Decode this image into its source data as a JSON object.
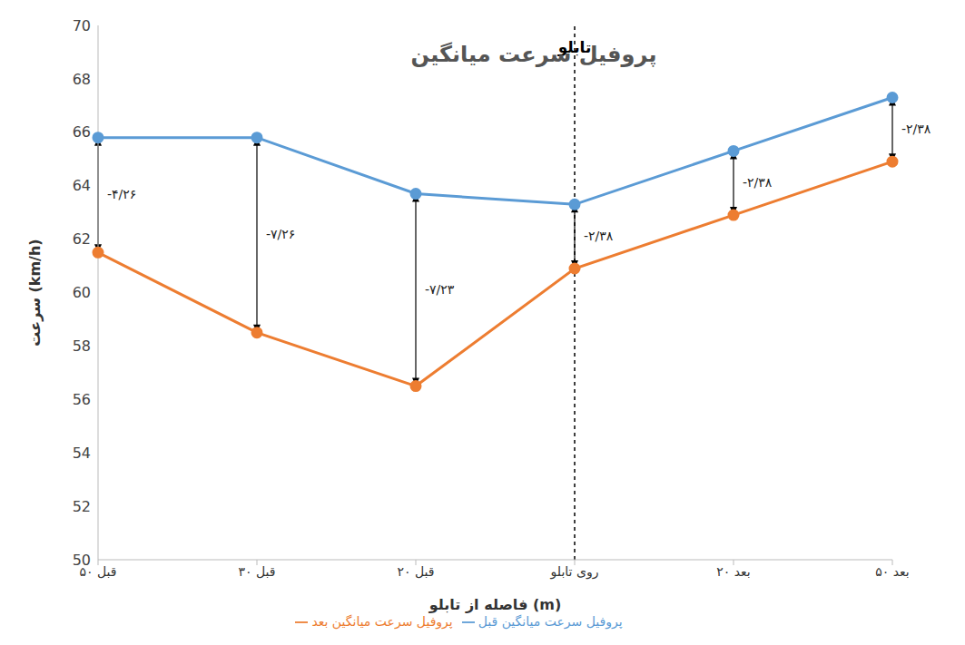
{
  "chart_data": {
    "type": "line",
    "title": "پروفیل سرعت میانگین",
    "x_label": "فاصله از تابلو (m)",
    "y_label": "سرعت (km/h)",
    "categories": [
      "۵۰ قبل",
      "۳۰ قبل",
      "۲۰ قبل",
      "روی تابلو",
      "۲۰ بعد",
      "۵۰ بعد"
    ],
    "series": [
      {
        "name": "پروفیل سرعت میانگین قبل",
        "color": "#5b9bd5",
        "marker": "circle",
        "values": [
          65.8,
          65.8,
          63.7,
          63.3,
          65.3,
          67.3
        ]
      },
      {
        "name": "پروفیل سرعت میانگین بعد",
        "color": "#ed7d31",
        "marker": "circle",
        "values": [
          61.5,
          58.5,
          56.5,
          60.9,
          62.9,
          64.9
        ]
      }
    ],
    "ylim": [
      50,
      70
    ],
    "yticks": [
      50,
      52,
      54,
      56,
      58,
      60,
      62,
      64,
      66,
      68,
      70
    ],
    "grid": false,
    "legend": "bottom",
    "reference_line": {
      "x": "روی تابلو",
      "label": "تابلو"
    },
    "annotations": [
      {
        "x": "۵۰ قبل",
        "text": "-۴/۲۶"
      },
      {
        "x": "۳۰ قبل",
        "text": "-۷/۲۶"
      },
      {
        "x": "۲۰ قبل",
        "text": "-۷/۲۳"
      },
      {
        "x": "روی تابلو",
        "text": "-۲/۳۸"
      },
      {
        "x": "۲۰ بعد",
        "text": "-۲/۳۸"
      },
      {
        "x": "۵۰ بعد",
        "text": "-۲/۳۸"
      }
    ]
  }
}
